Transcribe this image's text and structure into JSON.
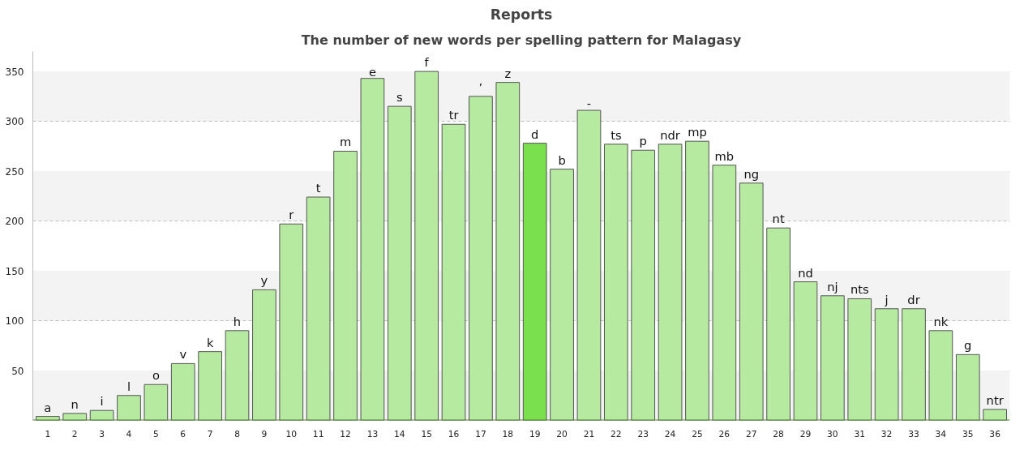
{
  "chart_data": {
    "type": "bar",
    "title": "Reports",
    "subtitle": "The number of new words per spelling pattern for Malagasy",
    "categories": [
      "1",
      "2",
      "3",
      "4",
      "5",
      "6",
      "7",
      "8",
      "9",
      "10",
      "11",
      "12",
      "13",
      "14",
      "15",
      "16",
      "17",
      "18",
      "19",
      "20",
      "21",
      "22",
      "23",
      "24",
      "25",
      "26",
      "27",
      "28",
      "29",
      "30",
      "31",
      "32",
      "33",
      "34",
      "35",
      "36"
    ],
    "values": [
      4,
      7,
      10,
      25,
      36,
      57,
      69,
      90,
      131,
      197,
      224,
      270,
      343,
      315,
      350,
      297,
      325,
      339,
      278,
      252,
      311,
      277,
      271,
      277,
      280,
      256,
      238,
      193,
      139,
      125,
      122,
      112,
      112,
      90,
      66,
      11
    ],
    "colors": [
      "#b5eaa0",
      "#b5eaa0",
      "#b5eaa0",
      "#b5eaa0",
      "#b5eaa0",
      "#b5eaa0",
      "#b5eaa0",
      "#b5eaa0",
      "#b5eaa0",
      "#b5eaa0",
      "#b5eaa0",
      "#b5eaa0",
      "#b5eaa0",
      "#b5eaa0",
      "#b5eaa0",
      "#b5eaa0",
      "#b5eaa0",
      "#b5eaa0",
      "#7ae04e",
      "#b5eaa0",
      "#b5eaa0",
      "#b5eaa0",
      "#b5eaa0",
      "#b5eaa0",
      "#b5eaa0",
      "#b5eaa0",
      "#b5eaa0",
      "#b5eaa0",
      "#b5eaa0",
      "#b5eaa0",
      "#b5eaa0",
      "#b5eaa0",
      "#b5eaa0",
      "#b5eaa0",
      "#b5eaa0",
      "#b5eaa0"
    ],
    "ylim": [
      0,
      370
    ],
    "yticks": [
      50,
      100,
      150,
      200,
      250,
      300,
      350
    ],
    "grid": "y",
    "bands": [
      {
        "axis": "y",
        "from": 0,
        "to": 50,
        "color": "#f3f3f3"
      },
      {
        "axis": "y",
        "from": 100,
        "to": 150,
        "color": "#f3f3f3"
      },
      {
        "axis": "y",
        "from": 200,
        "to": 250,
        "color": "#f3f3f3"
      },
      {
        "axis": "y",
        "from": 300,
        "to": 350,
        "color": "#f3f3f3"
      }
    ],
    "annotations": [
      {
        "text": "a",
        "x": "1",
        "y": 4
      },
      {
        "text": "n",
        "x": "2",
        "y": 7
      },
      {
        "text": "i",
        "x": "3",
        "y": 10
      },
      {
        "text": "l",
        "x": "4",
        "y": 25
      },
      {
        "text": "o",
        "x": "5",
        "y": 36
      },
      {
        "text": "v",
        "x": "6",
        "y": 57
      },
      {
        "text": "k",
        "x": "7",
        "y": 69
      },
      {
        "text": "h",
        "x": "8",
        "y": 90
      },
      {
        "text": "y",
        "x": "9",
        "y": 131
      },
      {
        "text": "r",
        "x": "10",
        "y": 197
      },
      {
        "text": "t",
        "x": "11",
        "y": 224
      },
      {
        "text": "m",
        "x": "12",
        "y": 270
      },
      {
        "text": "e",
        "x": "13",
        "y": 343
      },
      {
        "text": "s",
        "x": "14",
        "y": 315
      },
      {
        "text": "f",
        "x": "15",
        "y": 350
      },
      {
        "text": "tr",
        "x": "16",
        "y": 297
      },
      {
        "text": "’",
        "x": "17",
        "y": 325
      },
      {
        "text": "z",
        "x": "18",
        "y": 339
      },
      {
        "text": "d",
        "x": "19",
        "y": 278
      },
      {
        "text": "b",
        "x": "20",
        "y": 252
      },
      {
        "text": "-",
        "x": "21",
        "y": 311
      },
      {
        "text": "ts",
        "x": "22",
        "y": 277
      },
      {
        "text": "p",
        "x": "23",
        "y": 271
      },
      {
        "text": "ndr",
        "x": "24",
        "y": 277
      },
      {
        "text": "mp",
        "x": "25",
        "y": 280
      },
      {
        "text": "mb",
        "x": "26",
        "y": 256
      },
      {
        "text": "ng",
        "x": "27",
        "y": 238
      },
      {
        "text": "nt",
        "x": "28",
        "y": 193
      },
      {
        "text": "nd",
        "x": "29",
        "y": 139
      },
      {
        "text": "nj",
        "x": "30",
        "y": 125
      },
      {
        "text": "nts",
        "x": "31",
        "y": 122
      },
      {
        "text": "j",
        "x": "32",
        "y": 112
      },
      {
        "text": "dr",
        "x": "33",
        "y": 112
      },
      {
        "text": "nk",
        "x": "34",
        "y": 90
      },
      {
        "text": "g",
        "x": "35",
        "y": 66
      },
      {
        "text": "ntr",
        "x": "36",
        "y": 11
      }
    ]
  }
}
